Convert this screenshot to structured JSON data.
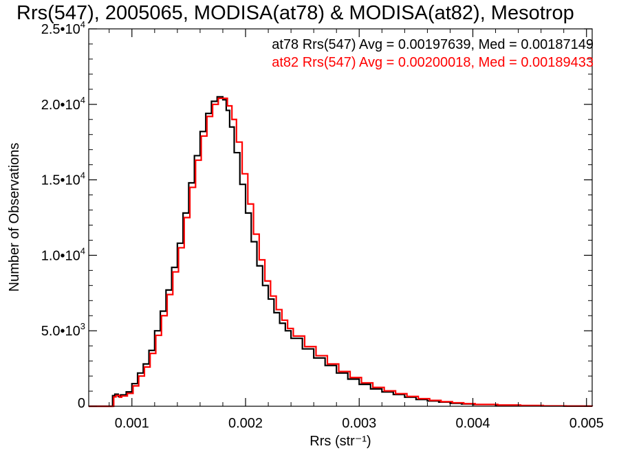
{
  "chart_data": {
    "type": "line",
    "title": "Rrs(547), 2005065, MODISA(at78) & MODISA(at82), Mesotrop",
    "xlabel": "Rrs (str⁻¹)",
    "ylabel": "Number of Observations",
    "xlim": [
      0.00062,
      0.00505
    ],
    "ylim": [
      0,
      25000
    ],
    "x_ticks": [
      0.001,
      0.002,
      0.003,
      0.004,
      0.005
    ],
    "x_tick_labels": [
      "0.001",
      "0.002",
      "0.003",
      "0.004",
      "0.005"
    ],
    "y_ticks": [
      0,
      5000,
      10000,
      15000,
      20000,
      25000
    ],
    "y_tick_labels": [
      {
        "mant": "0",
        "exp": ""
      },
      {
        "mant": "5.0•10",
        "exp": "3"
      },
      {
        "mant": "1.0•10",
        "exp": "4"
      },
      {
        "mant": "1.5•10",
        "exp": "4"
      },
      {
        "mant": "2.0•10",
        "exp": "4"
      },
      {
        "mant": "2.5•10",
        "exp": "4"
      }
    ],
    "grid": false,
    "legend_position": "top-right",
    "series": [
      {
        "name": "at78",
        "label": "at78 Rrs(547) Avg = 0.00197639, Med = 0.00187149",
        "color": "#000000",
        "x": [
          0.00062,
          0.00082,
          0.00083,
          0.00085,
          0.00088,
          0.0009,
          0.00095,
          0.001,
          0.00105,
          0.0011,
          0.00115,
          0.0012,
          0.00125,
          0.0013,
          0.00135,
          0.0014,
          0.00145,
          0.0015,
          0.00155,
          0.0016,
          0.00165,
          0.0017,
          0.00175,
          0.0018,
          0.00183,
          0.00186,
          0.0019,
          0.00195,
          0.002,
          0.00205,
          0.0021,
          0.00215,
          0.0022,
          0.00225,
          0.0023,
          0.00235,
          0.0024,
          0.0025,
          0.0026,
          0.0027,
          0.0028,
          0.0029,
          0.003,
          0.0031,
          0.0032,
          0.0033,
          0.0034,
          0.0035,
          0.0036,
          0.0037,
          0.0038,
          0.0039,
          0.004,
          0.0042,
          0.0044,
          0.0046,
          0.0048,
          0.005,
          0.00505
        ],
        "y": [
          0,
          0,
          700,
          800,
          650,
          750,
          950,
          1500,
          2200,
          2800,
          3700,
          5000,
          6300,
          7700,
          9200,
          10800,
          12800,
          14800,
          16600,
          18200,
          19400,
          20200,
          20500,
          20300,
          19600,
          18500,
          16800,
          14700,
          12800,
          10900,
          9300,
          8000,
          7100,
          6200,
          5500,
          5000,
          4500,
          3800,
          3200,
          2700,
          2200,
          1800,
          1450,
          1150,
          950,
          780,
          600,
          450,
          350,
          280,
          200,
          150,
          110,
          70,
          40,
          20,
          10,
          5,
          0
        ]
      },
      {
        "name": "at82",
        "label": "at82 Rrs(547) Avg = 0.00200018, Med = 0.00189433",
        "color": "#ff0000",
        "x": [
          0.00062,
          0.00083,
          0.00084,
          0.00086,
          0.00089,
          0.00091,
          0.00096,
          0.00101,
          0.00106,
          0.00111,
          0.00116,
          0.00121,
          0.00126,
          0.00131,
          0.00136,
          0.00141,
          0.00146,
          0.00151,
          0.00156,
          0.00161,
          0.00166,
          0.00171,
          0.00176,
          0.00181,
          0.00184,
          0.00188,
          0.00192,
          0.00197,
          0.00202,
          0.00207,
          0.00212,
          0.00217,
          0.00222,
          0.00227,
          0.00232,
          0.00237,
          0.00242,
          0.00252,
          0.00262,
          0.00272,
          0.00282,
          0.00292,
          0.00302,
          0.00312,
          0.00322,
          0.00332,
          0.00342,
          0.00352,
          0.00362,
          0.00372,
          0.00382,
          0.00392,
          0.00402,
          0.00422,
          0.00442,
          0.00462,
          0.00482,
          0.00502,
          0.00505
        ],
        "y": [
          0,
          0,
          620,
          720,
          600,
          680,
          850,
          1350,
          2000,
          2600,
          3500,
          4700,
          6000,
          7400,
          8900,
          10500,
          12500,
          14500,
          16300,
          17900,
          19200,
          20000,
          20400,
          20400,
          19900,
          19000,
          17500,
          15400,
          13400,
          11400,
          9700,
          8300,
          7300,
          6400,
          5700,
          5150,
          4650,
          3950,
          3350,
          2800,
          2300,
          1900,
          1550,
          1250,
          1020,
          830,
          650,
          500,
          390,
          300,
          230,
          170,
          120,
          80,
          50,
          25,
          12,
          6,
          0
        ]
      }
    ]
  }
}
